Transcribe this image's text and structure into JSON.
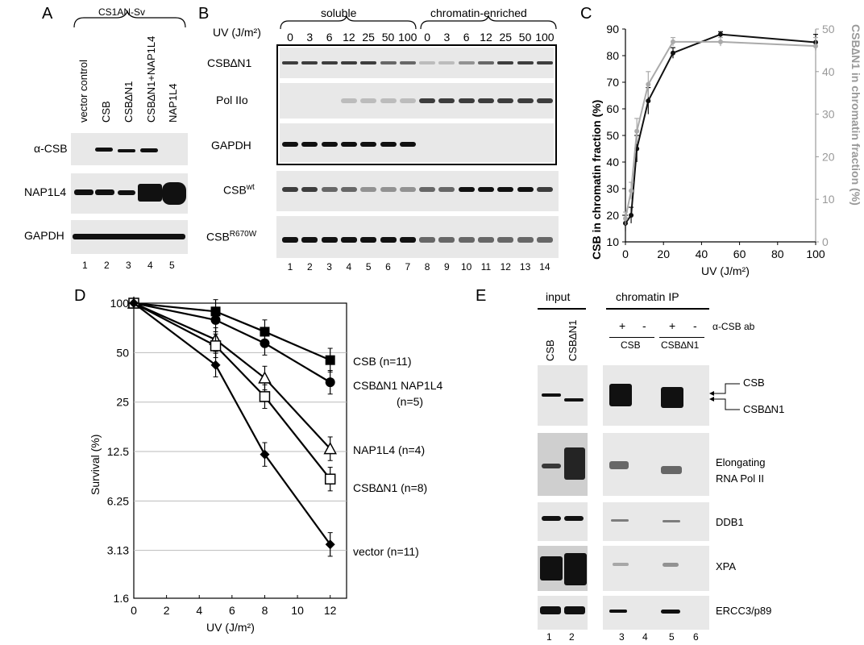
{
  "panelA": {
    "label": "A",
    "cell_line": "CS1AN-Sv",
    "columns": [
      "vector control",
      "CSB",
      "CSB∆N1",
      "CSB∆N1+NAP1L4",
      "NAP1L4"
    ],
    "rows": [
      "α-CSB",
      "NAP1L4",
      "GAPDH"
    ],
    "lanes": [
      "1",
      "2",
      "3",
      "4",
      "5"
    ]
  },
  "panelB": {
    "label": "B",
    "uv_label": "UV (J/m²)",
    "group_soluble": "soluble",
    "group_chromatin": "chromatin-enriched",
    "doses": [
      "0",
      "3",
      "6",
      "12",
      "25",
      "50",
      "100",
      "0",
      "3",
      "6",
      "12",
      "25",
      "50",
      "100"
    ],
    "rows": [
      "CSB∆N1",
      "Pol IIo",
      "GAPDH"
    ],
    "row_wt": "CSB",
    "row_wt_sup": "wt",
    "row_mut": "CSB",
    "row_mut_sup": "R670W",
    "lanes": [
      "1",
      "2",
      "3",
      "4",
      "5",
      "6",
      "7",
      "8",
      "9",
      "10",
      "11",
      "12",
      "13",
      "14"
    ]
  },
  "panelC": {
    "label": "C",
    "chart_data": {
      "type": "line",
      "xlabel": "UV (J/m²)",
      "ylabel_left": "CSB in chromatin fraction (%)",
      "ylabel_right": "CSB∆N1 in chromatin fraction (%)",
      "xlim": [
        0,
        100
      ],
      "ylim_left": [
        10,
        90
      ],
      "ylim_right": [
        0,
        50
      ],
      "x_ticks": [
        "0",
        "20",
        "40",
        "60",
        "80",
        "100"
      ],
      "y_ticks_left": [
        "10",
        "20",
        "30",
        "40",
        "50",
        "60",
        "70",
        "80",
        "90"
      ],
      "y_ticks_right": [
        "0",
        "10",
        "20",
        "30",
        "40",
        "50"
      ],
      "series": [
        {
          "axis": "left",
          "color": "#111111",
          "x": [
            0,
            3,
            6,
            12,
            25,
            50,
            100
          ],
          "y": [
            17,
            20,
            45,
            63,
            81,
            88,
            85
          ],
          "err": [
            3,
            3,
            5,
            5,
            2,
            1,
            3
          ]
        },
        {
          "axis": "right",
          "color": "#aaaaaa",
          "x": [
            0,
            3,
            6,
            12,
            25,
            50,
            100
          ],
          "y": [
            5.5,
            12,
            26,
            37,
            47,
            47,
            46
          ],
          "err": [
            1.5,
            2,
            3,
            3,
            1,
            1,
            2
          ]
        }
      ]
    }
  },
  "panelD": {
    "label": "D",
    "chart_data": {
      "type": "line",
      "xlabel": "UV (J/m²)",
      "ylabel": "Survival (%)",
      "xlim": [
        0,
        13
      ],
      "y_scale": "log2",
      "y_ticks": [
        "100",
        "50",
        "25",
        "12.5",
        "6.25",
        "3.13",
        "1.6"
      ],
      "x_ticks": [
        "0",
        "2",
        "4",
        "6",
        "8",
        "10",
        "12"
      ],
      "series": [
        {
          "name": "CSB (n=11)",
          "marker": "square-filled",
          "x": [
            0,
            5,
            8,
            12
          ],
          "y": [
            100,
            89,
            67,
            45
          ]
        },
        {
          "name": "CSB∆N1 NAP1L4",
          "name2": "(n=5)",
          "marker": "circle-filled",
          "x": [
            0,
            5,
            8,
            12
          ],
          "y": [
            100,
            79,
            57,
            33
          ]
        },
        {
          "name": "NAP1L4 (n=4)",
          "marker": "triangle-open",
          "x": [
            0,
            5,
            8,
            12
          ],
          "y": [
            100,
            60,
            35,
            13
          ]
        },
        {
          "name": "CSB∆N1 (n=8)",
          "marker": "square-open",
          "x": [
            0,
            5,
            8,
            12
          ],
          "y": [
            100,
            55,
            27,
            8.5
          ]
        },
        {
          "name": "vector (n=11)",
          "marker": "diamond-filled",
          "x": [
            0,
            5,
            8,
            12
          ],
          "y": [
            100,
            42,
            12,
            3.4
          ]
        }
      ]
    }
  },
  "panelE": {
    "label": "E",
    "input": "input",
    "chip": "chromatin IP",
    "input_cols": [
      "CSB",
      "CSB∆N1"
    ],
    "signs": [
      "+",
      "-",
      "+",
      "-"
    ],
    "ab": "α-CSB ab",
    "ip_groups": [
      "CSB",
      "CSB∆N1"
    ],
    "rows": [
      "Elongating",
      "RNA Pol II",
      "DDB1",
      "XPA",
      "ERCC3/p89"
    ],
    "arrow_labels": [
      "CSB",
      "CSB∆N1"
    ],
    "lanes": [
      "1",
      "2",
      "3",
      "4",
      "5",
      "6"
    ]
  }
}
